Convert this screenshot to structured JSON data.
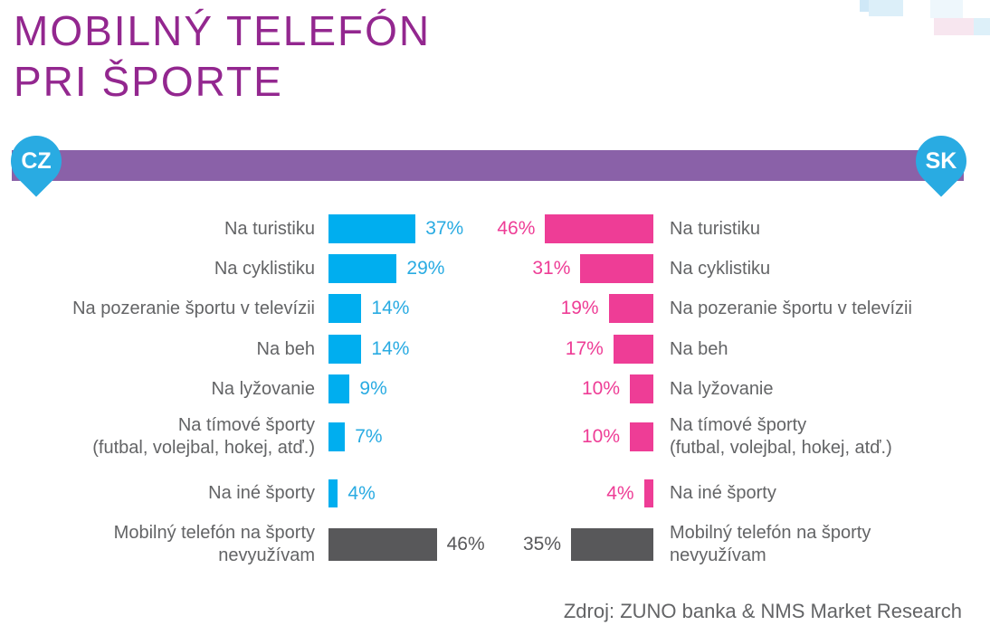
{
  "title": {
    "lines": [
      "MOBILNÝ TELEFÓN",
      "PRI ŠPORTE"
    ]
  },
  "markers": {
    "left": {
      "label": "CZ",
      "icon": "map-pin-icon"
    },
    "right": {
      "label": "SK",
      "icon": "map-pin-icon"
    }
  },
  "source": "Zdroj: ZUNO banka & NMS Market Research",
  "colors": {
    "title": "#93278F",
    "band": "#8A61A8",
    "pin": "#29ABE2",
    "cz_bar": "#00AEEF",
    "sk_bar": "#EE3D96",
    "neutral_bar": "#58585A",
    "label_text": "#636466",
    "cz_value_text": "#29ABE2",
    "sk_value_text": "#EE3D96",
    "neutral_value_text": "#58585A"
  },
  "chart_data": {
    "type": "bar",
    "orientation": "horizontal-mirrored",
    "unit": "%",
    "value_suffix": "%",
    "legend_position": "none",
    "grid": false,
    "categories": [
      "Na turistiku",
      "Na cyklistiku",
      "Na pozeranie športu v televízii",
      "Na beh",
      "Na lyžovanie",
      "Na tímové športy (futbal, volejbal, hokej, atď.)",
      "Na iné športy",
      "Mobilný telefón na športy nevyužívam"
    ],
    "category_display_lines": [
      [
        "Na turistiku"
      ],
      [
        "Na cyklistiku"
      ],
      [
        "Na pozeranie športu v televízii"
      ],
      [
        "Na beh"
      ],
      [
        "Na lyžovanie"
      ],
      [
        "Na tímové športy",
        "(futbal, volejbal, hokej, atď.)"
      ],
      [
        "Na iné športy"
      ],
      [
        "Mobilný telefón na športy",
        "nevyužívam"
      ]
    ],
    "series": [
      {
        "name": "CZ",
        "side": "left",
        "values": [
          37,
          29,
          14,
          14,
          9,
          7,
          4,
          46
        ]
      },
      {
        "name": "SK",
        "side": "right",
        "values": [
          46,
          31,
          19,
          17,
          10,
          10,
          4,
          35
        ]
      }
    ],
    "neutral_rows": [
      7
    ],
    "xlim": [
      0,
      50
    ]
  }
}
